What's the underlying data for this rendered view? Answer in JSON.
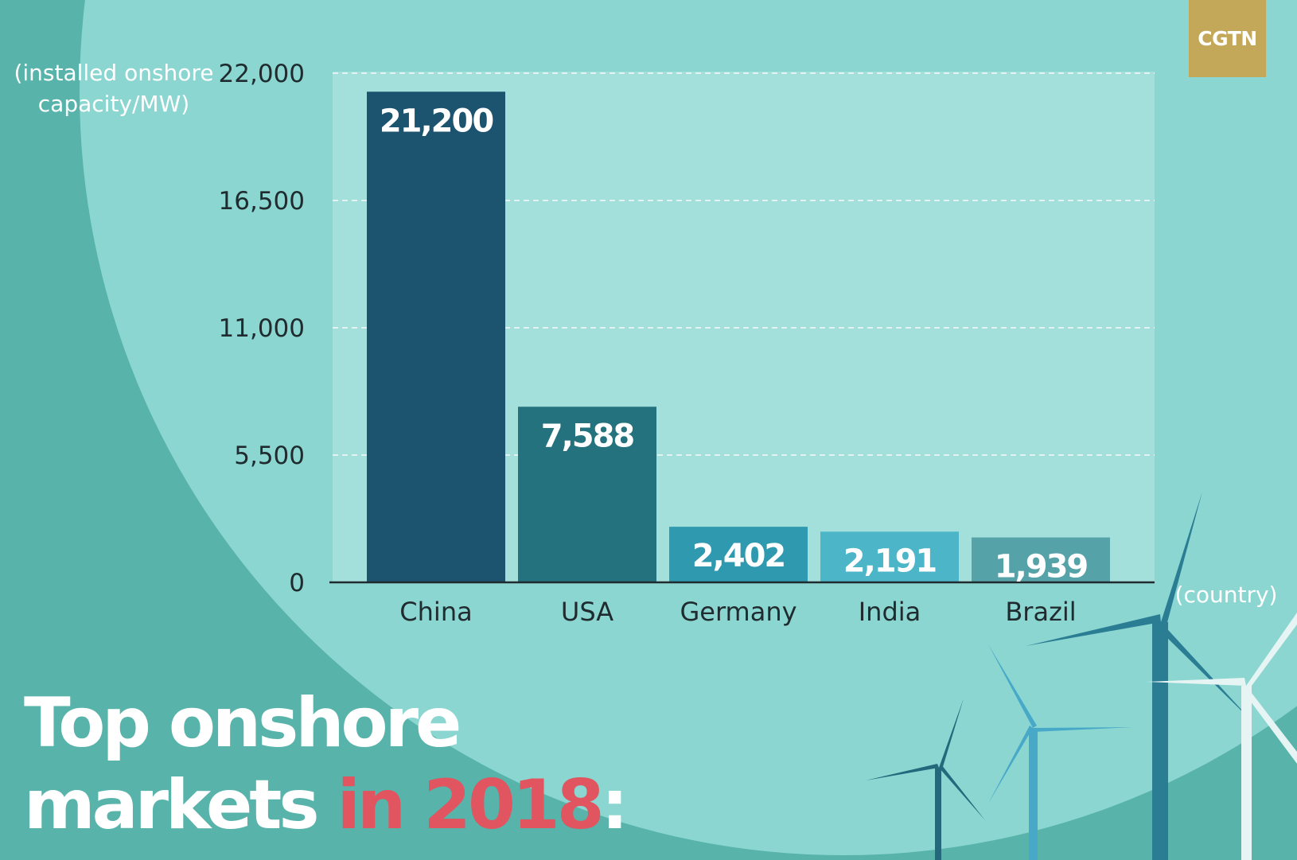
{
  "logo": {
    "text": "CGTN"
  },
  "headline": {
    "line1": "Top onshore",
    "line2_white": "markets",
    "line2_red": "in 2018",
    "line2_end": ":"
  },
  "colors": {
    "background_outer": "#58b3aa",
    "background_circle": "#8bd6d1",
    "plot_area": "#a3e0dc",
    "headline_accent": "#e0555f",
    "logo_bg": "#c4a85a"
  },
  "chart_data": {
    "type": "bar",
    "ylabel": "(installed onshore capacity/MW)",
    "ylabel_lines": [
      "(installed onshore",
      "capacity/MW)"
    ],
    "xlabel": "(country)",
    "categories": [
      "China",
      "USA",
      "Germany",
      "India",
      "Brazil"
    ],
    "values": [
      21200,
      7588,
      2402,
      2191,
      1939
    ],
    "value_labels": [
      "21,200",
      "7,588",
      "2,402",
      "2,191",
      "1,939"
    ],
    "bar_colors": [
      "#1c536e",
      "#23727d",
      "#2f99af",
      "#4cb6c8",
      "#55a2a8"
    ],
    "yticks": [
      0,
      5500,
      11000,
      16500,
      22000
    ],
    "ytick_labels": [
      "0",
      "5,500",
      "11,000",
      "16,500",
      "22,000"
    ],
    "ylim": [
      0,
      22000
    ],
    "grid": true
  }
}
